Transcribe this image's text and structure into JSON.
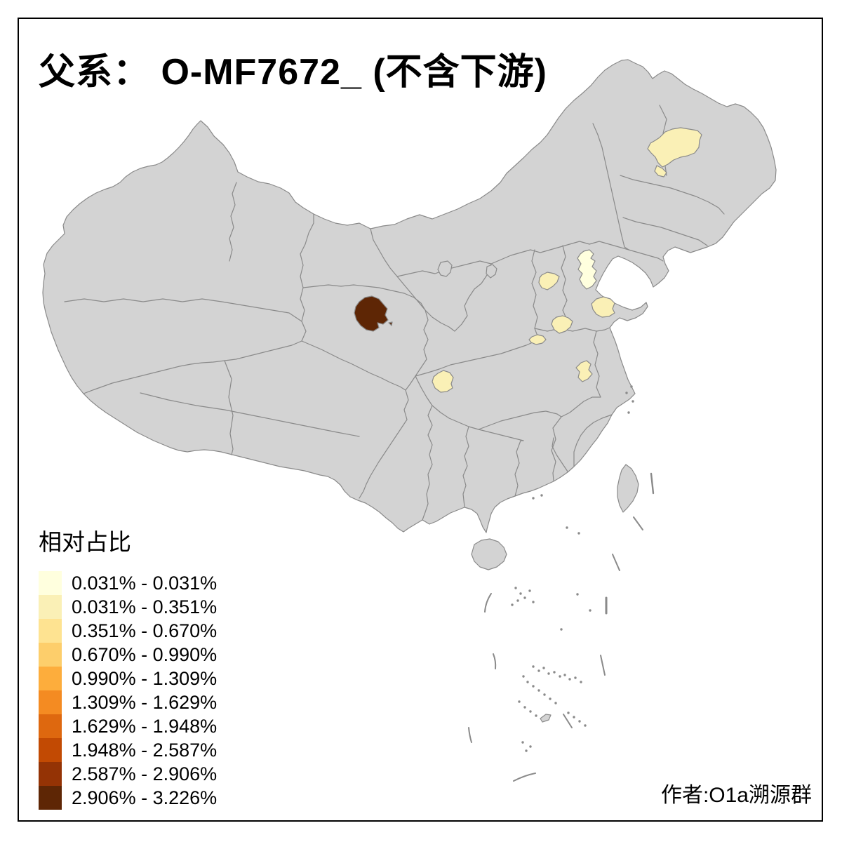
{
  "title": "父系： O-MF7672_ (不含下游)",
  "credit": "作者:O1a溯源群",
  "legend": {
    "title": "相对占比",
    "classes": [
      {
        "label": "0.031% - 0.031%",
        "color": "#FFFFDE"
      },
      {
        "label": "0.031% - 0.351%",
        "color": "#FAF0B6"
      },
      {
        "label": "0.351% - 0.670%",
        "color": "#FEE391"
      },
      {
        "label": "0.670% - 0.990%",
        "color": "#FDCE6B"
      },
      {
        "label": "0.990% - 1.309%",
        "color": "#FDAD3C"
      },
      {
        "label": "1.309% - 1.629%",
        "color": "#F48B22"
      },
      {
        "label": "1.629% - 1.948%",
        "color": "#DE680F"
      },
      {
        "label": "1.948% - 2.587%",
        "color": "#C24A03"
      },
      {
        "label": "2.587% - 2.906%",
        "color": "#943305"
      },
      {
        "label": "2.906% - 3.226%",
        "color": "#5E2605"
      }
    ]
  },
  "map": {
    "land_color": "#D3D3D3",
    "boundary_color": "#8A8A8A",
    "sea_color": "#FFFFFF",
    "frame_color": "#000000",
    "highlighted_regions": [
      {
        "name": "heilongjiang-prefecture",
        "class_index": 1,
        "range": "0.031% - 0.351%"
      },
      {
        "name": "beijing-tianjin-prefecture",
        "class_index": 0,
        "range": "0.031% - 0.031%"
      },
      {
        "name": "hebei-prefecture",
        "class_index": 1,
        "range": "0.031% - 0.351%"
      },
      {
        "name": "shandong-prefecture",
        "class_index": 1,
        "range": "0.031% - 0.351%"
      },
      {
        "name": "henan-north-prefecture",
        "class_index": 1,
        "range": "0.031% - 0.351%"
      },
      {
        "name": "henan-west-prefecture",
        "class_index": 1,
        "range": "0.031% - 0.351%"
      },
      {
        "name": "anhui-prefecture",
        "class_index": 1,
        "range": "0.031% - 0.351%"
      },
      {
        "name": "sichuan-prefecture",
        "class_index": 1,
        "range": "0.031% - 0.351%"
      },
      {
        "name": "qinghai-haixi-prefecture",
        "class_index": 9,
        "range": "2.906% - 3.226%"
      }
    ]
  }
}
